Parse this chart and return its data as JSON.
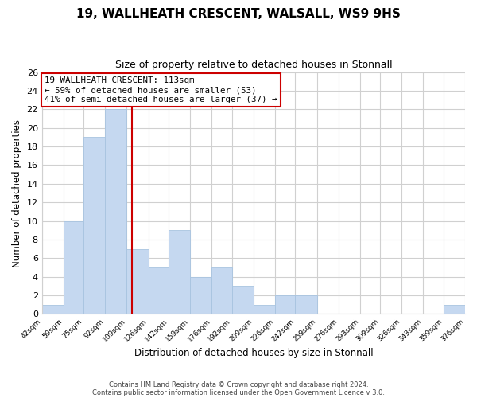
{
  "title": "19, WALLHEATH CRESCENT, WALSALL, WS9 9HS",
  "subtitle": "Size of property relative to detached houses in Stonnall",
  "xlabel": "Distribution of detached houses by size in Stonnall",
  "ylabel": "Number of detached properties",
  "bar_color": "#c5d8f0",
  "bar_edge_color": "#a8c4e0",
  "bin_edges": [
    42,
    59,
    75,
    92,
    109,
    126,
    142,
    159,
    176,
    192,
    209,
    226,
    242,
    259,
    276,
    293,
    309,
    326,
    343,
    359,
    376
  ],
  "bar_heights": [
    1,
    10,
    19,
    22,
    7,
    5,
    9,
    4,
    5,
    3,
    1,
    2,
    2,
    0,
    0,
    0,
    0,
    0,
    0,
    1
  ],
  "tick_labels": [
    "42sqm",
    "59sqm",
    "75sqm",
    "92sqm",
    "109sqm",
    "126sqm",
    "142sqm",
    "159sqm",
    "176sqm",
    "192sqm",
    "209sqm",
    "226sqm",
    "242sqm",
    "259sqm",
    "276sqm",
    "293sqm",
    "309sqm",
    "326sqm",
    "343sqm",
    "359sqm",
    "376sqm"
  ],
  "vline_x": 113,
  "vline_color": "#cc0000",
  "annotation_line1": "19 WALLHEATH CRESCENT: 113sqm",
  "annotation_line2": "← 59% of detached houses are smaller (53)",
  "annotation_line3": "41% of semi-detached houses are larger (37) →",
  "annotation_box_color": "#ffffff",
  "annotation_box_edge_color": "#cc0000",
  "ylim": [
    0,
    26
  ],
  "yticks": [
    0,
    2,
    4,
    6,
    8,
    10,
    12,
    14,
    16,
    18,
    20,
    22,
    24,
    26
  ],
  "footer1": "Contains HM Land Registry data © Crown copyright and database right 2024.",
  "footer2": "Contains public sector information licensed under the Open Government Licence v 3.0.",
  "background_color": "#ffffff",
  "grid_color": "#d0d0d0"
}
